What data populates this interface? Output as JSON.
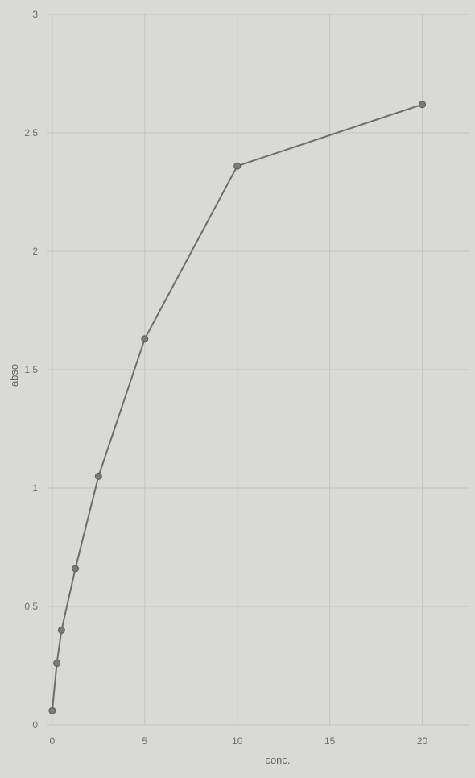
{
  "chart_data": {
    "type": "line",
    "title": "",
    "xlabel": "conc.",
    "ylabel": "abso",
    "xlim": [
      -0.3,
      22.5
    ],
    "ylim": [
      0,
      3
    ],
    "x_ticks": [
      0,
      5,
      10,
      15,
      20
    ],
    "x_tick_labels": [
      "0",
      "5",
      "10",
      "15",
      "20"
    ],
    "y_ticks": [
      0,
      0.5,
      1,
      1.5,
      2,
      2.5,
      3
    ],
    "y_tick_labels": [
      "0",
      "0.5",
      "1",
      "1.5",
      "2",
      "2.5",
      "3"
    ],
    "grid": true,
    "series": [
      {
        "x": [
          0,
          0.25,
          0.5,
          1.25,
          2.5,
          5,
          10,
          20
        ],
        "y": [
          0.06,
          0.26,
          0.4,
          0.66,
          1.05,
          1.63,
          2.36,
          2.62
        ]
      }
    ],
    "colors": {
      "line": "#6e6e6e",
      "point": "#7a7a7a",
      "grid": "#c3c3c0",
      "background": "#d9d9d6"
    }
  }
}
